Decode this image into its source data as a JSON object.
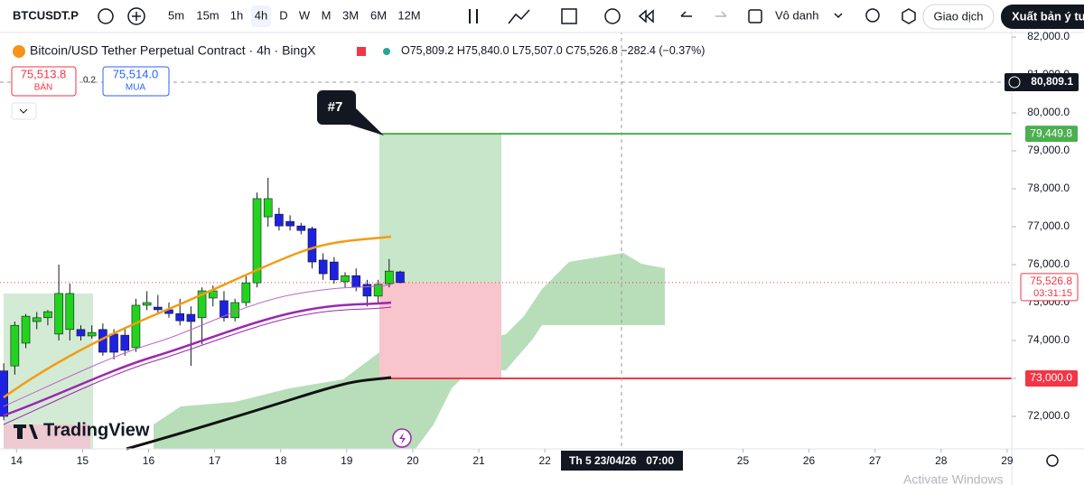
{
  "toolbar": {
    "symbol": "BTCUSDT.P",
    "intervals": [
      "5m",
      "15m",
      "1h",
      "4h",
      "D",
      "W",
      "M",
      "3M",
      "6M",
      "12M"
    ],
    "layout_name": "Vô danh",
    "trade_button": "Giao dịch",
    "publish_button": "Xuất bản ý tư"
  },
  "legend": {
    "title": "Bitcoin/USD Tether Perpetual Contract · 4h · BingX",
    "open": "O75,809.2",
    "high": "H75,840.0",
    "low": "L75,507.0",
    "close": "C75,526.8",
    "change": "−282.4 (−0.37%)"
  },
  "order_panel": {
    "sell_price": "75,513.8",
    "sell_label": "BÁN",
    "spread": "0.2",
    "buy_price": "75,514.0",
    "buy_label": "MUA"
  },
  "chart_data": {
    "type": "candlestick",
    "up_color": "#22d41e",
    "down_color": "#1e22e0",
    "open": [
      73200,
      73330,
      73930,
      74500,
      74600,
      74170,
      74290,
      74290,
      74120,
      74290,
      74170,
      74140,
      73810,
      74930,
      74880,
      74810,
      74710,
      74690,
      74600,
      75120,
      75050,
      74600,
      75000,
      75520,
      77260,
      77330,
      77140,
      77020,
      76950,
      76120,
      76070,
      75550,
      75710,
      75480,
      75170,
      75500,
      75809.2
    ],
    "high": [
      73400,
      74500,
      74700,
      74750,
      74800,
      76000,
      75500,
      74400,
      74400,
      74450,
      74300,
      74300,
      75100,
      75300,
      75200,
      75000,
      75100,
      74900,
      75400,
      75450,
      75300,
      75100,
      75700,
      77900,
      78290,
      77500,
      77300,
      77100,
      77000,
      76300,
      76200,
      75800,
      75900,
      75600,
      75600,
      76150,
      75840.0
    ],
    "low": [
      71900,
      73100,
      73800,
      74300,
      74400,
      74000,
      74000,
      74000,
      74050,
      73600,
      73500,
      73600,
      73700,
      74800,
      74700,
      74600,
      74400,
      73330,
      73900,
      74900,
      74500,
      74500,
      74900,
      75400,
      77000,
      76900,
      76900,
      76800,
      75900,
      75600,
      75500,
      75400,
      75300,
      74900,
      75000,
      75400,
      75507.0
    ],
    "close": [
      72000,
      74400,
      74640,
      74600,
      74760,
      75240,
      75240,
      74120,
      74210,
      73690,
      73690,
      73740,
      74930,
      75000,
      74810,
      74710,
      74520,
      74500,
      75310,
      75310,
      74600,
      75000,
      75520,
      77740,
      77740,
      77020,
      77020,
      76900,
      76070,
      75760,
      75600,
      75710,
      75400,
      75170,
      75480,
      75830,
      75526.8
    ],
    "ylim": [
      71143,
      82167
    ],
    "yticks": [
      {
        "value": 82000,
        "label": "82,000.0"
      },
      {
        "value": 81000,
        "label": "81,000.0"
      },
      {
        "value": 80000,
        "label": "80,000.0"
      },
      {
        "value": 79000,
        "label": "79,000.0"
      },
      {
        "value": 78000,
        "label": "78,000.0"
      },
      {
        "value": 77000,
        "label": "77,000.0"
      },
      {
        "value": 76000,
        "label": "76,000.0"
      },
      {
        "value": 75000,
        "label": "75,000.0"
      },
      {
        "value": 74000,
        "label": "74,000.0"
      },
      {
        "value": 73000,
        "label": "73,000.0"
      },
      {
        "value": 72000,
        "label": "72,000.0"
      }
    ],
    "xlim": [
      13.75,
      29.07
    ],
    "xticks": [
      14,
      15,
      16,
      17,
      18,
      19,
      20,
      21,
      22,
      25,
      26,
      27,
      28,
      29
    ],
    "annotation": "#7",
    "target": {
      "value": 79449.8,
      "label": "79,449.8"
    },
    "stop": {
      "value": 73000.0,
      "label": "73,000.0"
    },
    "last_price": {
      "value": 75526.8,
      "label": "75,526.8"
    },
    "countdown": "03:31:15",
    "crosshair": {
      "value": 80809.1,
      "label": "80,809.1",
      "date": "Th 5 23/04/26",
      "time": "07:00"
    }
  },
  "watermark": "TradingView",
  "os_notice": "Activate Windows"
}
